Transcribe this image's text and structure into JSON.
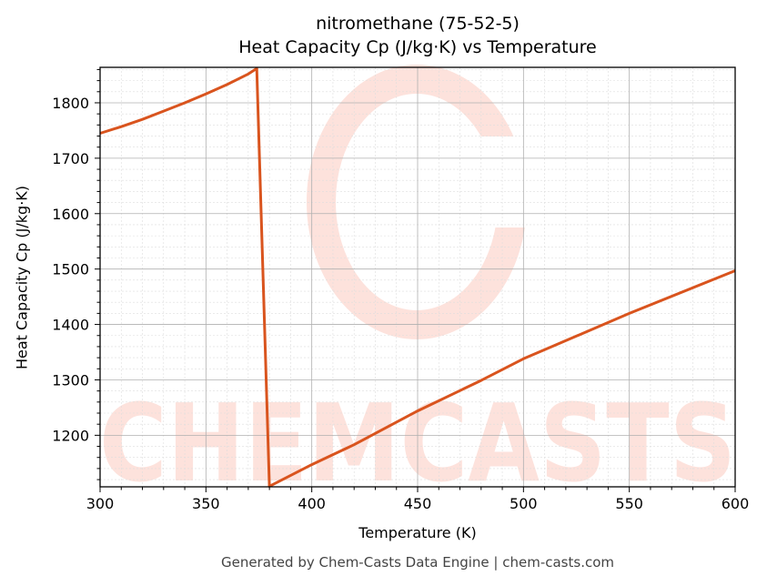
{
  "title": {
    "line1": "nitromethane (75-52-5)",
    "line2": "Heat Capacity Cp (J/kg·K) vs Temperature"
  },
  "axes": {
    "xlabel": "Temperature (K)",
    "ylabel": "Heat Capacity Cp (J/kg·K)",
    "xticks": [
      "300",
      "350",
      "400",
      "450",
      "500",
      "550",
      "600"
    ],
    "yticks": [
      "1200",
      "1300",
      "1400",
      "1500",
      "1600",
      "1700",
      "1800"
    ]
  },
  "footer": "Generated by Chem-Casts Data Engine | chem-casts.com",
  "watermark": "CHEMCASTS",
  "colors": {
    "line": "#d9541e",
    "watermark": "#fde2dc",
    "grid_major": "#b0b0b0",
    "grid_minor": "#dddddd"
  },
  "chart_data": {
    "type": "line",
    "title": "nitromethane (75-52-5)\nHeat Capacity Cp (J/kg·K) vs Temperature",
    "xlabel": "Temperature (K)",
    "ylabel": "Heat Capacity Cp (J/kg·K)",
    "xlim": [
      300,
      600
    ],
    "ylim": [
      1107,
      1864
    ],
    "grid": true,
    "legend": null,
    "series": [
      {
        "name": "Cp",
        "x": [
          300,
          310,
          320,
          330,
          340,
          350,
          360,
          370,
          374,
          380,
          400,
          420,
          450,
          480,
          500,
          550,
          600
        ],
        "y": [
          1745,
          1757,
          1770,
          1785,
          1800,
          1816,
          1833,
          1852,
          1862,
          1108,
          1147,
          1183,
          1244,
          1299,
          1338,
          1420,
          1497
        ]
      }
    ]
  }
}
